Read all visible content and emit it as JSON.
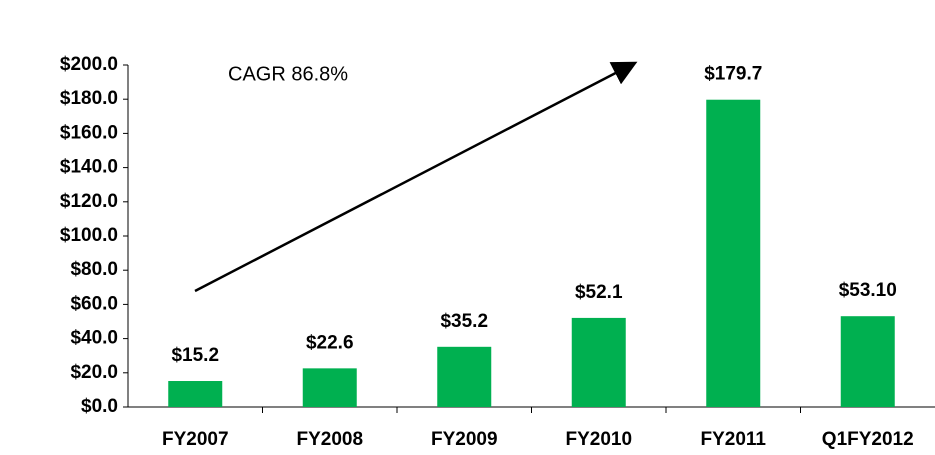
{
  "chart_data": {
    "type": "bar",
    "annotation": "CAGR 86.8%",
    "categories": [
      "FY2007",
      "FY2008",
      "FY2009",
      "FY2010",
      "FY2011",
      "Q1FY2012"
    ],
    "values": [
      15.2,
      22.6,
      35.2,
      52.1,
      179.7,
      53.1
    ],
    "value_labels": [
      "$15.2",
      "$22.6",
      "$35.2",
      "$52.1",
      "$179.7",
      "$53.10"
    ],
    "color": "#00b050",
    "ylim": [
      0,
      200
    ],
    "yticks": [
      {
        "value": 0,
        "label": "$0.0"
      },
      {
        "value": 20,
        "label": "$20.0"
      },
      {
        "value": 40,
        "label": "$40.0"
      },
      {
        "value": 60,
        "label": "$60.0"
      },
      {
        "value": 80,
        "label": "$80.0"
      },
      {
        "value": 100,
        "label": "$100.0"
      },
      {
        "value": 120,
        "label": "$120.0"
      },
      {
        "value": 140,
        "label": "$140.0"
      },
      {
        "value": 160,
        "label": "$160.0"
      },
      {
        "value": 180,
        "label": "$180.0"
      },
      {
        "value": 200,
        "label": "$200.0"
      }
    ],
    "grid": false
  }
}
